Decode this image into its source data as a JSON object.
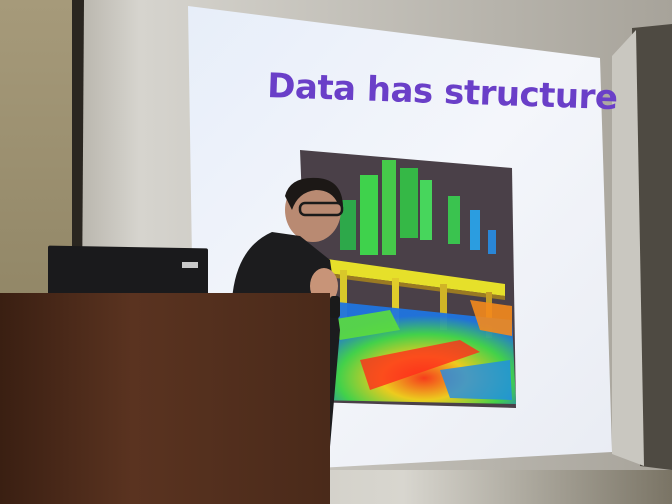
{
  "slide": {
    "title": "Data has structure"
  },
  "colors": {
    "slide_title": "#6a3fc8",
    "slide_background": "#f2f5ff",
    "point_cloud_background": "#4a4048"
  }
}
